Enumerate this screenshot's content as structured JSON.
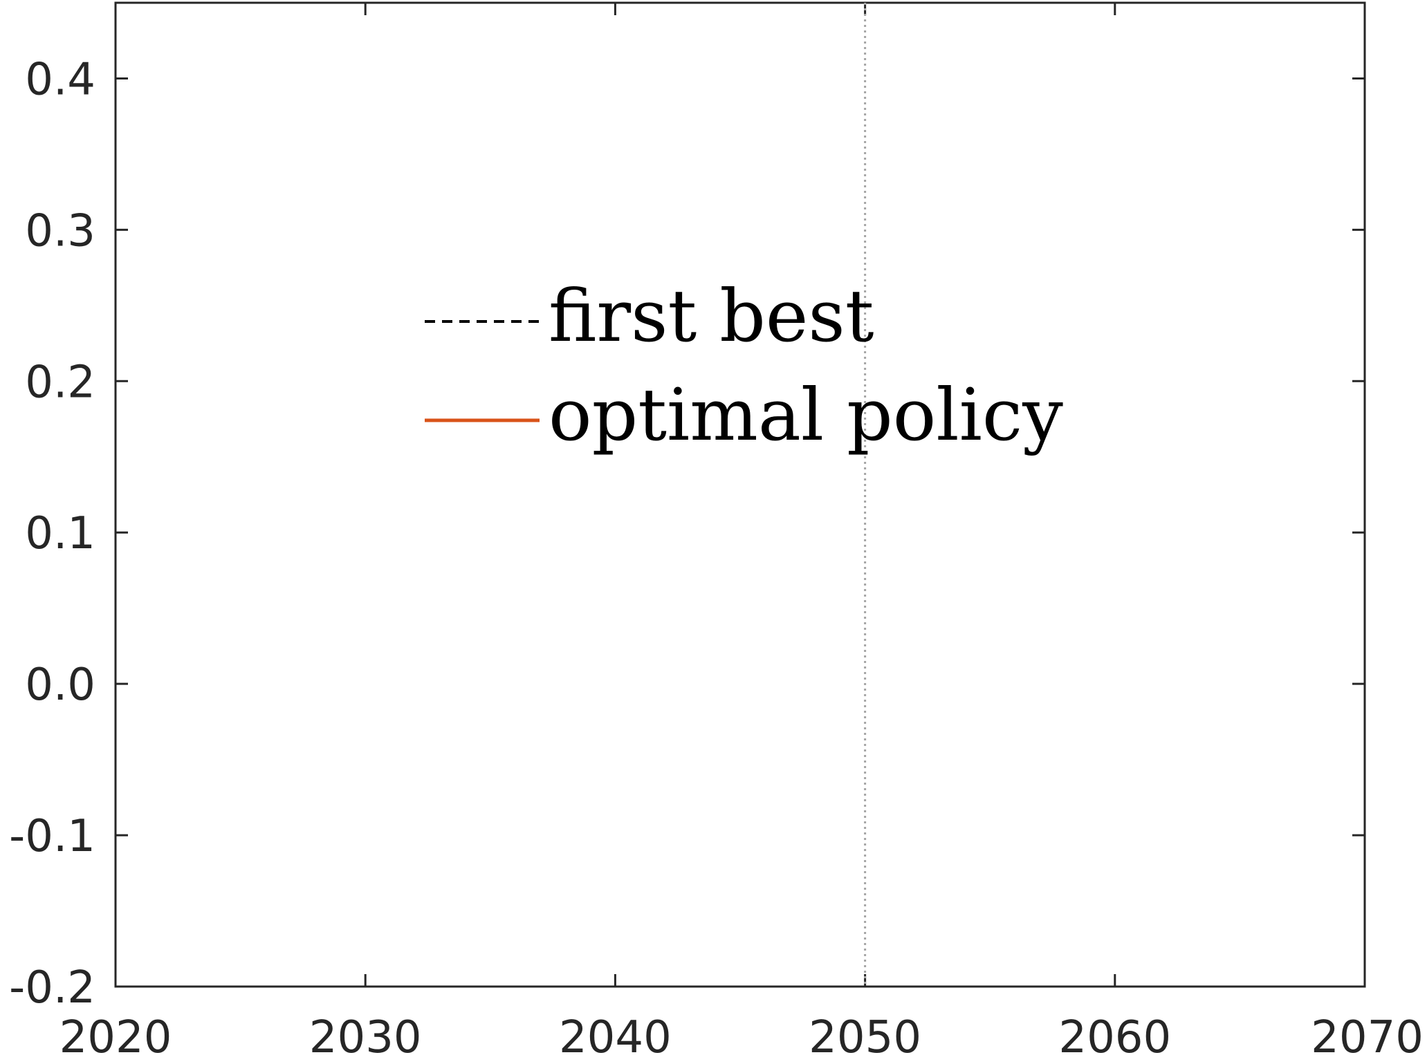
{
  "chart_data": {
    "type": "line",
    "title": "",
    "xlabel": "",
    "ylabel": "",
    "xlim": [
      2020,
      2070
    ],
    "ylim": [
      -0.2,
      0.45
    ],
    "xticks": [
      2020,
      2030,
      2040,
      2050,
      2060,
      2070
    ],
    "xtick_labels": [
      "2020",
      "2030",
      "2040",
      "2050",
      "2060",
      "2070"
    ],
    "yticks": [
      -0.2,
      -0.1,
      0.0,
      0.1,
      0.2,
      0.3,
      0.4
    ],
    "ytick_labels": [
      "-0.2",
      "-0.1",
      "0.0",
      "0.1",
      "0.2",
      "0.3",
      "0.4"
    ],
    "grid": false,
    "reference_line": {
      "orientation": "vertical",
      "x": 2050,
      "style": "dotted",
      "color": "#a6a6a6"
    },
    "legend": {
      "placement": "upper-center",
      "entries": [
        {
          "label": "first best",
          "line_style": "dashed",
          "color": "#000000"
        },
        {
          "label": "optimal policy",
          "line_style": "solid",
          "color": "#d95319"
        }
      ]
    },
    "series": [
      {
        "name": "first best",
        "x": [],
        "values": []
      },
      {
        "name": "optimal policy",
        "x": [],
        "values": []
      }
    ]
  }
}
